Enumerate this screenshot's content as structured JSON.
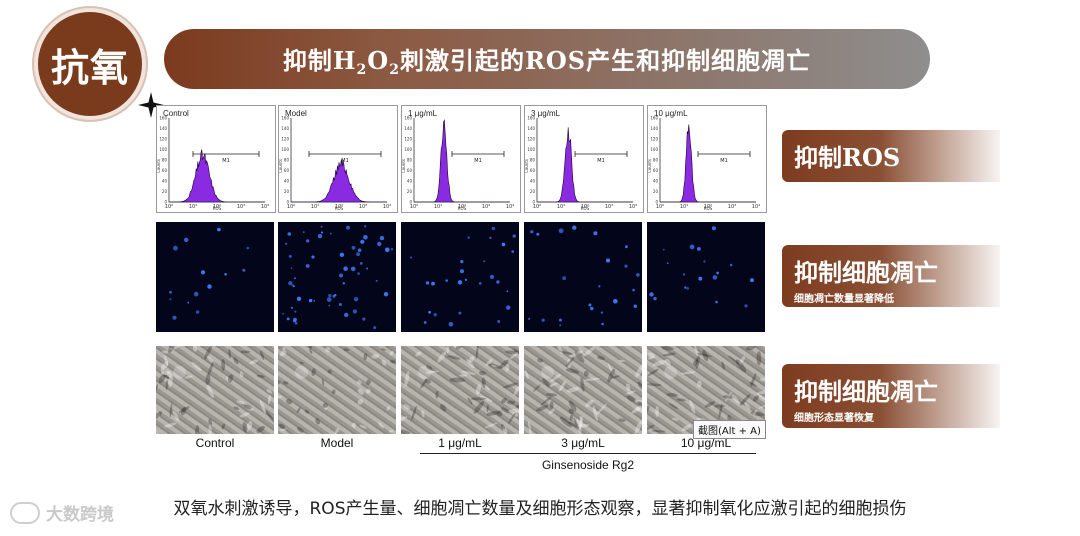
{
  "badge": {
    "text": "抗氧"
  },
  "title": {
    "pre": "抑制H",
    "sub1": "2",
    "mid": "O",
    "sub2": "2",
    "post": "刺激引起的ROS产生和抑制细胞凋亡"
  },
  "histograms": [
    {
      "label": "Control",
      "peak_log": 1.4,
      "peak_height": 0.55,
      "width": 0.28
    },
    {
      "label": "Model",
      "peak_log": 2.1,
      "peak_height": 0.45,
      "width": 0.32
    },
    {
      "label": "1 μg/mL",
      "peak_log": 1.25,
      "peak_height": 0.9,
      "width": 0.12
    },
    {
      "label": "3 μg/mL",
      "peak_log": 1.3,
      "peak_height": 0.88,
      "width": 0.13
    },
    {
      "label": "10 μg/mL",
      "peak_log": 1.2,
      "peak_height": 0.9,
      "width": 0.11
    }
  ],
  "hist_axes": {
    "ylabel": "Counts",
    "xlabel": "ROS",
    "gate": "M1",
    "y_ticks": [
      "0",
      "20",
      "40",
      "60",
      "80",
      "100",
      "120",
      "140",
      "160"
    ],
    "x_ticks": [
      "10⁰",
      "10¹",
      "10²",
      "10³",
      "10⁴"
    ]
  },
  "columns": [
    "Control",
    "Model",
    "1 μg/mL",
    "3 μg/mL",
    "10 μg/mL"
  ],
  "apoptosis_cells": [
    14,
    58,
    26,
    22,
    18
  ],
  "group_label": "Ginsenoside Rg2",
  "snip_tip": "截图(Alt + A)",
  "side": [
    {
      "title": "抑制ROS",
      "subtitle": ""
    },
    {
      "title": "抑制细胞凋亡",
      "subtitle": "细胞凋亡数量显著降低"
    },
    {
      "title": "抑制细胞凋亡",
      "subtitle": "细胞形态显著恢复"
    }
  ],
  "caption": "双氧水刺激诱导，ROS产生量、细胞凋亡数量及细胞形态观察，显著抑制氧化应激引起的细胞损伤",
  "watermark": "大数跨境",
  "colors": {
    "brown": "#7a3b1d",
    "histogram_fill": "#8a2be2",
    "fluorescence": "#3f7bff"
  }
}
